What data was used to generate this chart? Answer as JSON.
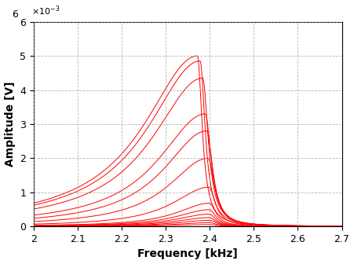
{
  "xlabel": "Frequency [kHz]",
  "ylabel": "Amplitude [V]",
  "xlim": [
    2.0,
    2.7
  ],
  "ylim": [
    0,
    0.006
  ],
  "background_color": "#ffffff",
  "line_color": "#ff0000",
  "font_size_labels": 10,
  "font_size_ticks": 9,
  "curves": [
    {
      "amp": 5.5e-05,
      "f0": 2.4,
      "gl": 0.09,
      "gr": 0.018
    },
    {
      "amp": 0.00011,
      "f0": 2.4,
      "gl": 0.09,
      "gr": 0.018
    },
    {
      "amp": 0.00018,
      "f0": 2.4,
      "gl": 0.09,
      "gr": 0.018
    },
    {
      "amp": 0.00026,
      "f0": 2.399,
      "gl": 0.09,
      "gr": 0.018
    },
    {
      "amp": 0.00036,
      "f0": 2.399,
      "gl": 0.09,
      "gr": 0.018
    },
    {
      "amp": 0.00049,
      "f0": 2.399,
      "gl": 0.09,
      "gr": 0.018
    },
    {
      "amp": 0.00068,
      "f0": 2.399,
      "gl": 0.09,
      "gr": 0.018
    },
    {
      "amp": 0.00115,
      "f0": 2.398,
      "gl": 0.1,
      "gr": 0.018
    },
    {
      "amp": 0.002,
      "f0": 2.396,
      "gl": 0.11,
      "gr": 0.018
    },
    {
      "amp": 0.0028,
      "f0": 2.393,
      "gl": 0.12,
      "gr": 0.017
    },
    {
      "amp": 0.0033,
      "f0": 2.39,
      "gl": 0.13,
      "gr": 0.016
    },
    {
      "amp": 0.00435,
      "f0": 2.384,
      "gl": 0.14,
      "gr": 0.015
    },
    {
      "amp": 0.00485,
      "f0": 2.378,
      "gl": 0.145,
      "gr": 0.014
    },
    {
      "amp": 0.005,
      "f0": 2.372,
      "gl": 0.148,
      "gr": 0.013
    }
  ]
}
